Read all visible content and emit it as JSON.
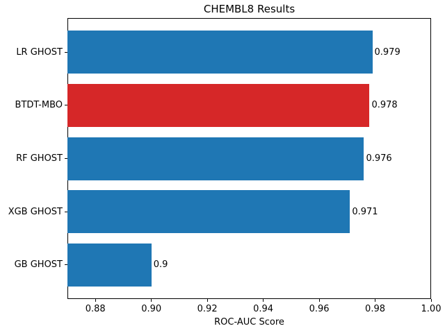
{
  "chart_data": {
    "type": "bar",
    "orientation": "horizontal",
    "title": "CHEMBL8 Results",
    "xlabel": "ROC-AUC Score",
    "ylabel": "",
    "categories": [
      "LR GHOST",
      "BTDT-MBO",
      "RF GHOST",
      "XGB GHOST",
      "GB GHOST"
    ],
    "values": [
      0.979,
      0.978,
      0.976,
      0.971,
      0.9
    ],
    "value_labels": [
      "0.979",
      "0.978",
      "0.976",
      "0.971",
      "0.9"
    ],
    "bar_colors": [
      "#1f77b4",
      "#d62728",
      "#1f77b4",
      "#1f77b4",
      "#1f77b4"
    ],
    "default_bar_color": "#1f77b4",
    "highlight_color": "#d62728",
    "highlighted_category": "BTDT-MBO",
    "xlim": [
      0.87,
      1.0
    ],
    "xticks": [
      0.88,
      0.9,
      0.92,
      0.94,
      0.96,
      0.98,
      1.0
    ],
    "xtick_labels": [
      "0.88",
      "0.90",
      "0.92",
      "0.94",
      "0.96",
      "0.98",
      "1.00"
    ],
    "grid": false,
    "legend_position": "none",
    "axis_color": "#000000",
    "background_color": "#ffffff"
  }
}
